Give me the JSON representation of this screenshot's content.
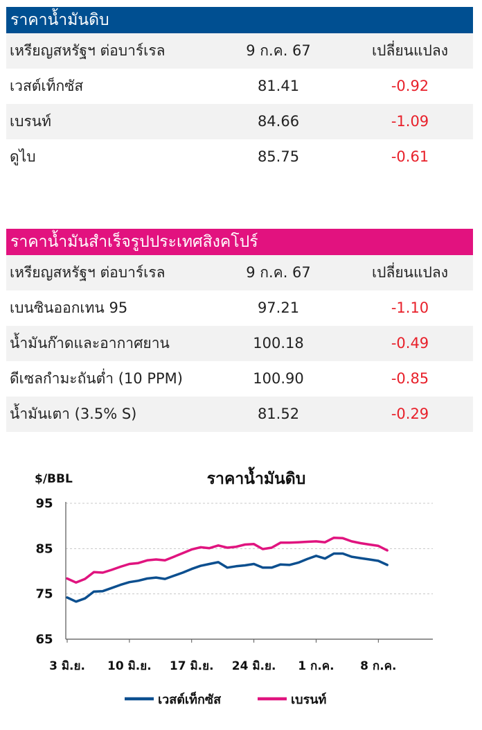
{
  "crude_table": {
    "title": "ราคาน้ำมันดิบ",
    "title_bg": "#004f91",
    "header": [
      "เหรียญสหรัฐฯ ต่อบาร์เรล",
      "9 ก.ค. 67",
      "เปลี่ยนแปลง"
    ],
    "rows": [
      {
        "name": "เวสต์เท็กซัส",
        "price": "81.41",
        "change": "-0.92"
      },
      {
        "name": "เบรนท์",
        "price": "84.66",
        "change": "-1.09"
      },
      {
        "name": "ดูไบ",
        "price": "85.75",
        "change": "-0.61"
      }
    ]
  },
  "singapore_table": {
    "title": "ราคาน้ำมันสำเร็จรูปประเทศสิงคโปร์",
    "title_bg": "#e2127f",
    "header": [
      "เหรียญสหรัฐฯ ต่อบาร์เรล",
      "9 ก.ค. 67",
      "เปลี่ยนแปลง"
    ],
    "rows": [
      {
        "name": "เบนซินออกเทน 95",
        "price": "97.21",
        "change": "-1.10"
      },
      {
        "name": "น้ำมันก๊าดและอากาศยาน",
        "price": "100.18",
        "change": "-0.49"
      },
      {
        "name": "ดีเซลกำมะถันต่ำ (10 PPM)",
        "price": "100.90",
        "change": "-0.85"
      },
      {
        "name": "น้ำมันเตา (3.5% S)",
        "price": "81.52",
        "change": "-0.29"
      }
    ]
  },
  "colors": {
    "negative": "#e8202a",
    "wti": "#0c4f8f",
    "brent": "#e0147f"
  },
  "chart_data": {
    "type": "line",
    "title": "ราคาน้ำมันดิบ",
    "ylabel": "$/BBL",
    "ylim": [
      65,
      95
    ],
    "yticks": [
      65,
      75,
      85,
      95
    ],
    "xlim": [
      0,
      37
    ],
    "xtick_labels": [
      {
        "label": "3 มิ.ย.",
        "x": 0
      },
      {
        "label": "10 มิ.ย.",
        "x": 7
      },
      {
        "label": "17 มิ.ย.",
        "x": 14
      },
      {
        "label": "24 มิ.ย.",
        "x": 21
      },
      {
        "label": "1 ก.ค.",
        "x": 28
      },
      {
        "label": "8 ก.ค.",
        "x": 35
      }
    ],
    "grid": "horizontal dashed",
    "legend_position": "bottom",
    "series": [
      {
        "name": "เวสต์เท็กซัส",
        "x": [
          0,
          1,
          2,
          3,
          4,
          5,
          6,
          7,
          8,
          9,
          10,
          11,
          12,
          13,
          14,
          15,
          16,
          17,
          18,
          19,
          20,
          21,
          22,
          23,
          24,
          25,
          26,
          27,
          28,
          29,
          30,
          31,
          32,
          33,
          34,
          35,
          36
        ],
        "y": [
          74.2,
          73.3,
          74.0,
          75.5,
          75.6,
          76.3,
          77.0,
          77.6,
          77.9,
          78.4,
          78.6,
          78.3,
          79.0,
          79.7,
          80.5,
          81.2,
          81.6,
          82.0,
          80.8,
          81.1,
          81.3,
          81.6,
          80.8,
          80.8,
          81.5,
          81.4,
          81.9,
          82.7,
          83.4,
          82.8,
          83.9,
          83.9,
          83.2,
          82.9,
          82.6,
          82.3,
          81.4
        ]
      },
      {
        "name": "เบรนท์",
        "x": [
          0,
          1,
          2,
          3,
          4,
          5,
          6,
          7,
          8,
          9,
          10,
          11,
          12,
          13,
          14,
          15,
          16,
          17,
          18,
          19,
          20,
          21,
          22,
          23,
          24,
          25,
          26,
          27,
          28,
          29,
          30,
          31,
          32,
          33,
          34,
          35,
          36
        ],
        "y": [
          78.4,
          77.5,
          78.3,
          79.8,
          79.7,
          80.3,
          81.0,
          81.6,
          81.8,
          82.4,
          82.6,
          82.4,
          83.2,
          84.0,
          84.8,
          85.3,
          85.1,
          85.7,
          85.2,
          85.4,
          85.9,
          86.0,
          84.9,
          85.2,
          86.3,
          86.3,
          86.4,
          86.5,
          86.6,
          86.4,
          87.4,
          87.3,
          86.6,
          86.2,
          85.9,
          85.6,
          84.6
        ]
      }
    ]
  }
}
